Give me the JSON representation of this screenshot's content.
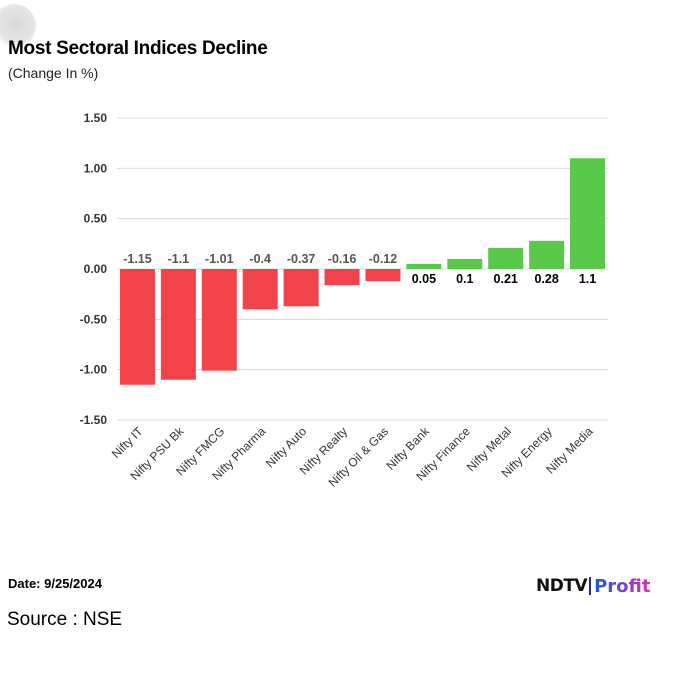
{
  "chart_data": {
    "type": "bar",
    "title": "Most Sectoral Indices Decline",
    "subtitle": "(Change In %)",
    "categories": [
      "Nifty IT",
      "Nifty PSU Bk",
      "Nifty FMCG",
      "Nifty Pharma",
      "Nifty Auto",
      "Nifty Realty",
      "Nifty Oil & Gas",
      "Nifty Bank",
      "Nifty Finance",
      "Nifty Metal",
      "Nifty Energy",
      "Nifty Media"
    ],
    "values": [
      -1.15,
      -1.1,
      -1.01,
      -0.4,
      -0.37,
      -0.16,
      -0.12,
      0.05,
      0.1,
      0.21,
      0.28,
      1.1
    ],
    "data_labels": [
      "-1.15",
      "-1.1",
      "-1.01",
      "-0.4",
      "-0.37",
      "-0.16",
      "-0.12",
      "0.05",
      "0.1",
      "0.21",
      "0.28",
      "1.1"
    ],
    "yticks": [
      "1.50",
      "1.00",
      "0.50",
      "0.00",
      "-0.50",
      "-1.00",
      "-1.50"
    ],
    "ylim": [
      -1.5,
      1.5
    ],
    "xlabel": "",
    "ylabel": "",
    "grid": true,
    "colors": {
      "negative": "#f2434b",
      "positive": "#5ac84a",
      "negative_label": "#555555",
      "positive_label": "#000000"
    }
  },
  "footer": {
    "date": "Date: 9/25/2024",
    "source": "Source : NSE"
  },
  "logo": {
    "ndtv": "NDTV",
    "profit": "Profit"
  }
}
